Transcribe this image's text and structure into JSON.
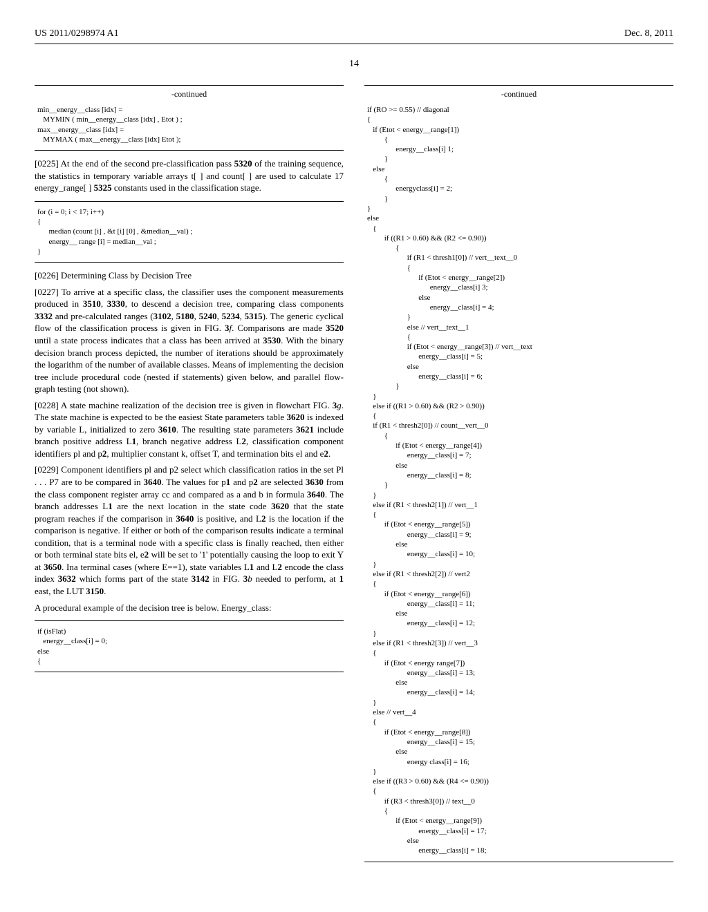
{
  "header": {
    "left": "US 2011/0298974 A1",
    "right": "Dec. 8, 2011"
  },
  "page_number": "14",
  "left_col": {
    "continued1": "-continued",
    "code1": "min__energy__class [idx] =\n   MYMIN ( min__energy__class [idx] , Etot ) ;\nmax__energy__class [idx] =\n   MYMAX ( max__energy__class [idx] Etot );",
    "p0225_num": "[0225]",
    "p0225": "   At the end of the second pre-classification pass 5320 of the training sequence, the statistics in temporary variable arrays t[ ] and count[ ] are used to calculate 17 energy_range[ ] 5325 constants used in the classification stage.",
    "code2": "for (i = 0; i < 17; i++)\n{\n      median (count [i] , &t [i] [0] , &median__val) ;\n      energy__ range [i] = median__val ;\n}",
    "p0226_num": "[0226]",
    "p0226": "   Determining Class by Decision Tree",
    "p0227_num": "[0227]",
    "p0227": "   To arrive at a specific class, the classifier uses the component measurements produced in 3510, 3330, to descend a decision tree, comparing class components 3332 and pre-calculated ranges (3102, 5180, 5240, 5234, 5315). The generic cyclical flow of the classification process is given in FIG. 3f. Comparisons are made 3520 until a state process indicates that a class has been arrived at 3530. With the binary decision branch process depicted, the number of iterations should be approximately the logarithm of the number of available classes. Means of implementing the decision tree include procedural code (nested if statements) given below, and parallel flow-graph testing (not shown).",
    "p0228_num": "[0228]",
    "p0228": "   A state machine realization of the decision tree is given in flowchart FIG. 3g. The state machine is expected to be the easiest State parameters table 3620 is indexed by variable L, initialized to zero 3610. The resulting state parameters 3621 include branch positive address L1, branch negative address L2, classification component identifiers pl and p2, multiplier constant k, offset T, and termination bits el and e2.",
    "p0229_num": "[0229]",
    "p0229": "   Component identifiers pl and p2 select which classification ratios in the set Pl . . . P7 are to be compared in 3640. The values for p1 and p2 are selected 3630 from the class component register array cc and compared as a and b in formula 3640. The branch addresses L1 are the next location in the state code 3620 that the state program reaches if the comparison in 3640 is positive, and L2 is the location if the comparison is negative. If either or both of the comparison results indicate a terminal condition, that is a terminal node with a specific class is finally reached, then either or both terminal state bits el, e2 will be set to '1' potentially causing the loop to exit Y at 3650. Ina terminal cases (where E==1), state variables L1 and L2 encode the class index 3632 which forms part of the state 3142 in FIG. 3b needed to perform, at 1 east, the LUT 3150.",
    "p0229_tail": "A procedural example of the decision tree is below. Energy_class:",
    "code3": "if (isFlat)\n   energy__class[i] = 0;\nelse\n{"
  },
  "right_col": {
    "continued1": "-continued",
    "code1": "if (RO >= 0.55) // diagonal\n{\n   if (Etot < energy__range[1])\n         {\n               energy__class[i] 1;\n         }\n   else\n         {\n               energyclass[i] = 2;\n         }\n}\nelse\n   {\n         if ((R1 > 0.60) && (R2 <= 0.90))\n               {\n                     if (R1 < thresh1[0]) // vert__text__0\n                     {\n                           if (Etot < energy__range[2])\n                                 energy__class[i] 3;\n                           else\n                                 energy__class[i] = 4;\n                     }\n                     else // vert__text__1\n                     {\n                     if (Etot < energy__range[3]) // vert__text\n                           energy__class[i] = 5;\n                     else\n                           energy__class[i] = 6;\n               }\n   }\n   else if ((R1 > 0.60) && (R2 > 0.90))\n   {\n   if (R1 < thresh2[0]) // count__vert__0\n         {\n               if (Etot < energy__range[4])\n                     energy__class[i] = 7;\n               else\n                     energy__class[i] = 8;\n         }\n   }\n   else if (R1 < thresh2[1]) // vert__1\n   {\n         if (Etot < energy__range[5])\n                     energy__class[i] = 9;\n               else\n                     energy__class[i] = 10;\n   }\n   else if (R1 < thresh2[2]) // vert2\n   {\n         if (Etot < energy__range[6])\n                     energy__class[i] = 11;\n               else\n                     energy__class[i] = 12;\n   }\n   else if (R1 < thresh2[3]) // vert__3\n   {\n         if (Etot < energy range[7])\n                     energy__class[i] = 13;\n               else\n                     energy__class[i] = 14;\n   }\n   else // vert__4\n   {\n         if (Etot < energy__range[8])\n                     energy__class[i] = 15;\n               else\n                     energy class[i] = 16;\n   }\n   else if ((R3 > 0.60) && (R4 <= 0.90))\n   {\n         if (R3 < thresh3[0]) // text__0\n         {\n               if (Etot < energy__range[9])\n                           energy__class[i] = 17;\n                     else\n                           energy__class[i] = 18;"
  }
}
